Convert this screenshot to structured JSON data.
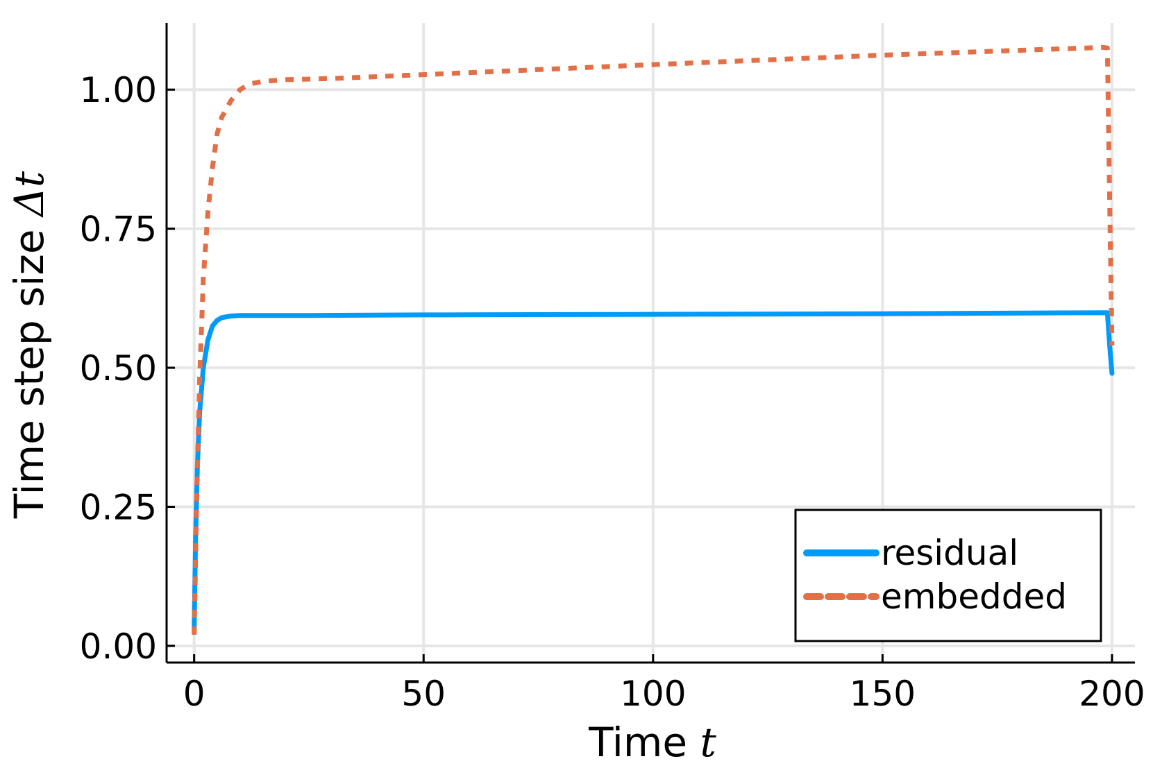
{
  "chart_data": {
    "type": "line",
    "xlabel": "Time",
    "xlabel_var": "t",
    "ylabel": "Time step size",
    "ylabel_var": "Δt",
    "xlim": [
      -6,
      205
    ],
    "ylim": [
      -0.03,
      1.12
    ],
    "xticks": [
      0,
      50,
      100,
      150,
      200
    ],
    "xtick_labels": [
      "0",
      "50",
      "100",
      "150",
      "200"
    ],
    "yticks": [
      0.0,
      0.25,
      0.5,
      0.75,
      1.0
    ],
    "ytick_labels": [
      "0.00",
      "0.25",
      "0.50",
      "0.75",
      "1.00"
    ],
    "grid": true,
    "legend_position": "bottom-right",
    "series": [
      {
        "name": "residual",
        "color": "#009af9",
        "style": "solid",
        "x": [
          0,
          0.3,
          0.7,
          1.2,
          2,
          3,
          4,
          5,
          6,
          8,
          10,
          15,
          25,
          50,
          100,
          150,
          199,
          199.5,
          200
        ],
        "y": [
          0.03,
          0.19,
          0.32,
          0.42,
          0.5,
          0.55,
          0.575,
          0.585,
          0.59,
          0.593,
          0.594,
          0.594,
          0.594,
          0.595,
          0.596,
          0.597,
          0.599,
          0.54,
          0.49
        ]
      },
      {
        "name": "embedded",
        "color": "#e26f46",
        "style": "dashed",
        "x": [
          0,
          0.3,
          0.7,
          1.2,
          2,
          3,
          4,
          5,
          6,
          8,
          10,
          12,
          15,
          20,
          30,
          50,
          100,
          150,
          198,
          199,
          199.5,
          200
        ],
        "y": [
          0.02,
          0.15,
          0.32,
          0.48,
          0.66,
          0.78,
          0.86,
          0.92,
          0.95,
          0.98,
          1.0,
          1.01,
          1.015,
          1.018,
          1.02,
          1.027,
          1.045,
          1.062,
          1.076,
          1.075,
          0.8,
          0.54
        ]
      }
    ]
  }
}
